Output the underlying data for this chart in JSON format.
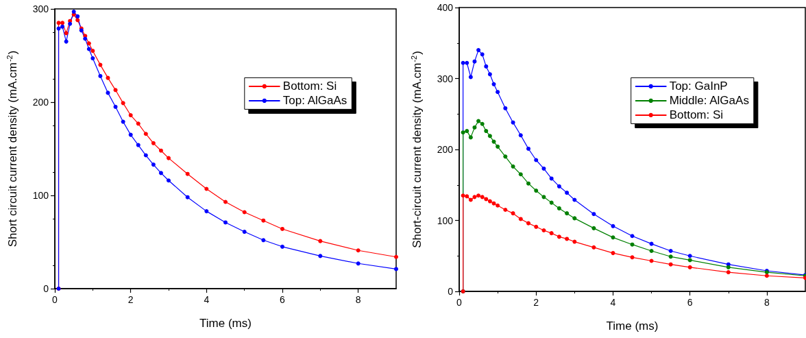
{
  "chart_data": [
    {
      "type": "line",
      "xlabel": "Time (ms)",
      "ylabel": "Short circuit current density (mA.cm$^{-2}$)",
      "x": [
        0.1,
        0.1,
        0.2,
        0.3,
        0.4,
        0.5,
        0.6,
        0.7,
        0.8,
        0.9,
        1.0,
        1.2,
        1.4,
        1.6,
        1.8,
        2.0,
        2.2,
        2.4,
        2.6,
        2.8,
        3.0,
        3.5,
        4.0,
        4.5,
        5.0,
        5.5,
        6.0,
        7.0,
        8.0,
        9.0
      ],
      "xlim": [
        0,
        9
      ],
      "xticks": [
        0,
        2,
        4,
        6,
        8
      ],
      "ylim": [
        0,
        300
      ],
      "yticks": [
        0,
        100,
        200,
        300
      ],
      "grid": false,
      "legend": "top right",
      "marker": "circle",
      "line_style": "solid",
      "series": [
        {
          "name": "Bottom: Si",
          "color": "#ff0000",
          "values": [
            0,
            285,
            285,
            274,
            287,
            294,
            288,
            279,
            271,
            263,
            255,
            240,
            226,
            213,
            199,
            186,
            177,
            166,
            156,
            148,
            140,
            123,
            107,
            93,
            82,
            73,
            64,
            51,
            41,
            34
          ]
        },
        {
          "name": "Top: AlGaAs",
          "color": "#0000ff",
          "values": [
            0,
            279,
            281,
            265,
            284,
            297,
            292,
            277,
            268,
            257,
            247,
            228,
            210,
            195,
            179,
            165,
            154,
            143,
            133,
            124,
            116,
            98,
            83,
            71,
            61,
            52,
            45,
            35,
            27,
            21
          ]
        }
      ]
    },
    {
      "type": "line",
      "xlabel": "Time (ms)",
      "ylabel": "Short-circuit current density (mA.cm$^{-2}$)",
      "x": [
        0.1,
        0.1,
        0.2,
        0.3,
        0.4,
        0.5,
        0.6,
        0.7,
        0.8,
        0.9,
        1.0,
        1.2,
        1.4,
        1.6,
        1.8,
        2.0,
        2.2,
        2.4,
        2.6,
        2.8,
        3.0,
        3.5,
        4.0,
        4.5,
        5.0,
        5.5,
        6.0,
        7.0,
        8.0,
        9.0
      ],
      "xlim": [
        0,
        9
      ],
      "xticks": [
        0,
        2,
        4,
        6,
        8
      ],
      "ylim": [
        0,
        400
      ],
      "yticks": [
        0,
        100,
        200,
        300,
        400
      ],
      "grid": false,
      "legend": "top right",
      "marker": "circle",
      "line_style": "solid",
      "series": [
        {
          "name": "Top: GaInP",
          "color": "#0000ff",
          "values": [
            0,
            322,
            322,
            302,
            324,
            340,
            334,
            317,
            306,
            292,
            281,
            258,
            238,
            220,
            201,
            185,
            173,
            159,
            148,
            139,
            129,
            109,
            92,
            78,
            67,
            57,
            50,
            38,
            29,
            23
          ]
        },
        {
          "name": "Middle: AlGaAs",
          "color": "#008000",
          "values": [
            0,
            224,
            226,
            217,
            231,
            240,
            236,
            226,
            219,
            211,
            204,
            190,
            176,
            165,
            152,
            142,
            133,
            125,
            117,
            110,
            103,
            89,
            76,
            66,
            57,
            49,
            44,
            34,
            27,
            22
          ]
        },
        {
          "name": "Bottom: Si",
          "color": "#ff0000",
          "values": [
            0,
            135,
            134,
            129,
            133,
            135,
            133,
            130,
            127,
            124,
            121,
            115,
            110,
            102,
            96,
            91,
            86,
            82,
            77,
            74,
            70,
            62,
            54,
            48,
            43,
            38,
            34,
            27,
            22,
            19
          ]
        }
      ]
    }
  ]
}
